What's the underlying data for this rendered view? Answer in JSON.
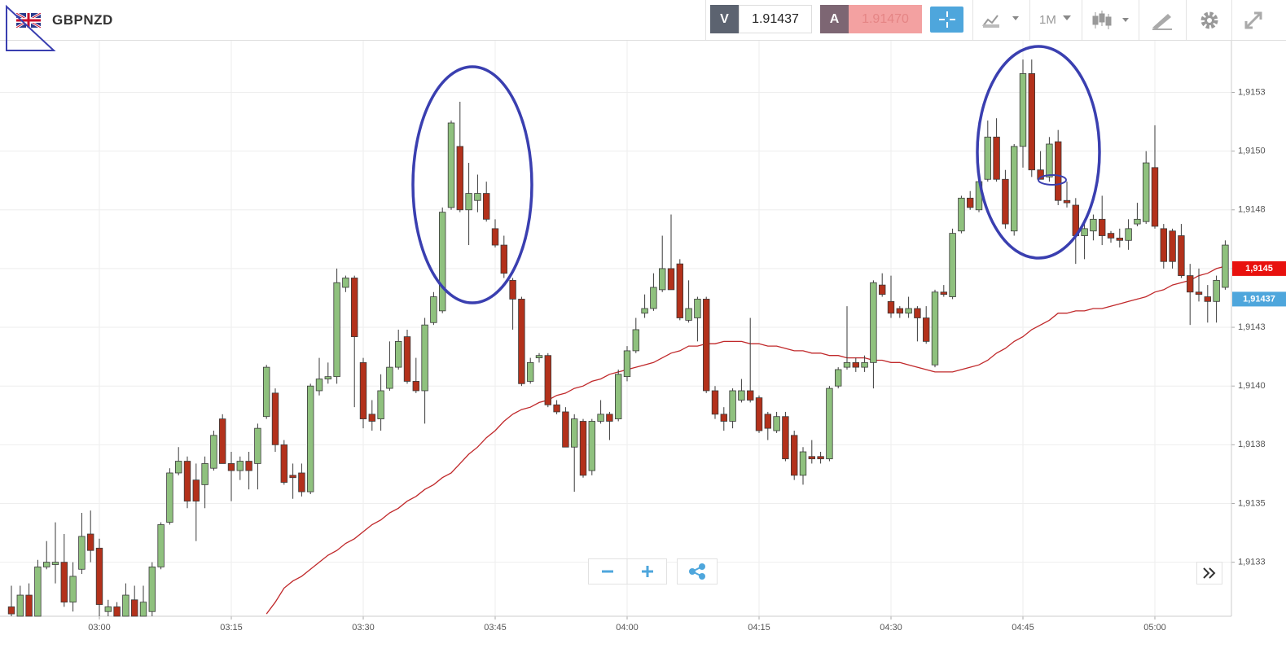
{
  "header": {
    "symbol": "GBPNZD",
    "sell_label": "V",
    "sell_price": "1.91437",
    "buy_label": "A",
    "buy_price": "1.91470",
    "timeframe": "1M"
  },
  "chart_data": {
    "type": "candlestick",
    "categories": [
      null,
      null,
      null,
      null,
      null,
      null,
      null,
      null,
      null,
      null,
      "03:00",
      null,
      null,
      null,
      null,
      null,
      null,
      null,
      null,
      null,
      null,
      null,
      null,
      null,
      null,
      "03:15",
      null,
      null,
      null,
      null,
      null,
      null,
      null,
      null,
      null,
      null,
      null,
      null,
      null,
      null,
      "03:30",
      null,
      null,
      null,
      null,
      null,
      null,
      null,
      null,
      null,
      null,
      null,
      null,
      null,
      null,
      "03:45",
      null,
      null,
      null,
      null,
      null,
      null,
      null,
      null,
      null,
      null,
      null,
      null,
      null,
      null,
      "04:00",
      null,
      null,
      null,
      null,
      null,
      null,
      null,
      null,
      null,
      null,
      null,
      null,
      null,
      null,
      "04:15",
      null,
      null,
      null,
      null,
      null,
      null,
      null,
      null,
      null,
      null,
      null,
      null,
      null,
      null,
      "04:30",
      null,
      null,
      null,
      null,
      null,
      null,
      null,
      null,
      null,
      null,
      null,
      null,
      null,
      null,
      "04:45",
      null,
      null,
      null,
      null,
      null,
      null,
      null,
      null,
      null,
      null,
      null,
      null,
      null,
      null,
      "05:00",
      null,
      null,
      null,
      null,
      null,
      null,
      null,
      null
    ],
    "open": [
      1.91306,
      1.91302,
      1.91311,
      1.91302,
      1.91323,
      1.91324,
      1.91325,
      1.91308,
      1.91322,
      1.91337,
      1.91331,
      1.91304,
      1.91306,
      1.91302,
      1.91309,
      1.91302,
      1.91304,
      1.91323,
      1.91342,
      1.91363,
      1.91368,
      1.9136,
      1.91358,
      1.91365,
      1.91386,
      1.91367,
      1.91364,
      1.91368,
      1.91367,
      1.91387,
      1.91397,
      1.91375,
      1.91362,
      1.91363,
      1.91355,
      1.91398,
      1.91403,
      1.91404,
      1.91442,
      1.91446,
      1.9141,
      1.91388,
      1.91386,
      1.91399,
      1.91408,
      1.91421,
      1.91402,
      1.91398,
      1.91427,
      1.91432,
      1.91476,
      1.91502,
      1.91475,
      1.91479,
      1.91482,
      1.91467,
      1.9146,
      1.91445,
      1.91437,
      1.91402,
      1.91412,
      1.91413,
      1.91392,
      1.91389,
      1.91374,
      1.91385,
      1.91364,
      1.91385,
      1.91388,
      1.91386,
      1.91404,
      1.91415,
      1.91431,
      1.91433,
      1.91441,
      1.9145,
      1.91452,
      1.91428,
      1.91429,
      1.91437,
      1.91398,
      1.91388,
      1.91385,
      1.91394,
      1.91398,
      1.91395,
      1.91388,
      1.91381,
      1.91387,
      1.91379,
      1.91362,
      1.9137,
      1.9137,
      1.91369,
      1.914,
      1.91408,
      1.9141,
      1.91408,
      1.9141,
      1.91443,
      1.91436,
      1.91433,
      1.91431,
      1.91433,
      1.91429,
      1.91409,
      1.9144,
      1.91438,
      1.91466,
      1.9148,
      1.91475,
      1.91488,
      1.91506,
      1.91488,
      1.91466,
      1.91502,
      1.91533,
      1.91492,
      1.91489,
      1.91504,
      1.91479,
      1.91477,
      1.91464,
      1.91466,
      1.91471,
      1.91465,
      1.91463,
      1.91462,
      1.91469,
      1.9147,
      1.91493,
      1.91467,
      1.91466,
      1.91464,
      1.91447,
      1.9144,
      1.91438,
      1.91436,
      1.91442
    ],
    "high": [
      1.91315,
      1.91315,
      1.91316,
      1.91326,
      1.91334,
      1.91342,
      1.91337,
      1.91325,
      1.91346,
      1.91347,
      1.91335,
      1.91309,
      1.91308,
      1.91316,
      1.91315,
      1.91315,
      1.91325,
      1.91342,
      1.91365,
      1.91374,
      1.9137,
      1.91367,
      1.9137,
      1.91381,
      1.91388,
      1.91372,
      1.9137,
      1.91372,
      1.91384,
      1.91409,
      1.91399,
      1.91377,
      1.91367,
      1.91367,
      1.91401,
      1.91412,
      1.9141,
      1.9145,
      1.91447,
      1.91447,
      1.91412,
      1.91394,
      1.91405,
      1.91419,
      1.91424,
      1.91424,
      1.91412,
      1.91429,
      1.9144,
      1.91476,
      1.91513,
      1.91521,
      1.91495,
      1.9149,
      1.91487,
      1.91471,
      1.91464,
      1.91446,
      1.91438,
      1.91412,
      1.91414,
      1.91414,
      1.91394,
      1.91391,
      1.91388,
      1.91386,
      1.91386,
      1.91394,
      1.91389,
      1.91407,
      1.91417,
      1.91429,
      1.91439,
      1.91448,
      1.91464,
      1.91473,
      1.91454,
      1.91445,
      1.91438,
      1.91438,
      1.914,
      1.91391,
      1.91399,
      1.91403,
      1.91429,
      1.91396,
      1.91389,
      1.91389,
      1.91389,
      1.91381,
      1.91374,
      1.91377,
      1.91372,
      1.914,
      1.91408,
      1.91434,
      1.91412,
      1.91413,
      1.91445,
      1.91448,
      1.91447,
      1.91434,
      1.91438,
      1.91434,
      1.91434,
      1.91441,
      1.91443,
      1.91467,
      1.91481,
      1.91483,
      1.91488,
      1.91513,
      1.91514,
      1.91492,
      1.91503,
      1.91539,
      1.91539,
      1.915,
      1.91506,
      1.91509,
      1.91487,
      1.9148,
      1.91469,
      1.91473,
      1.91481,
      1.91466,
      1.91467,
      1.91471,
      1.91478,
      1.915,
      1.91511,
      1.91469,
      1.91467,
      1.91469,
      1.91452,
      1.9145,
      1.91443,
      1.91447,
      1.91462
    ],
    "low": [
      1.91302,
      1.91302,
      1.91302,
      1.91302,
      1.91322,
      1.91316,
      1.91306,
      1.91304,
      1.9132,
      1.91325,
      1.91302,
      1.91302,
      1.91302,
      1.91302,
      1.91302,
      1.91302,
      1.91302,
      1.91322,
      1.91341,
      1.91362,
      1.91348,
      1.91334,
      1.91348,
      1.91364,
      1.91367,
      1.91351,
      1.9136,
      1.91356,
      1.91356,
      1.91386,
      1.91372,
      1.91358,
      1.91352,
      1.91353,
      1.91354,
      1.91396,
      1.91401,
      1.91401,
      1.9144,
      1.91391,
      1.91382,
      1.91381,
      1.91381,
      1.91398,
      1.91407,
      1.91401,
      1.91397,
      1.91384,
      1.91426,
      1.91431,
      1.91475,
      1.91474,
      1.9146,
      1.91474,
      1.9147,
      1.91459,
      1.91446,
      1.91424,
      1.914,
      1.91401,
      1.9141,
      1.91391,
      1.91388,
      1.91374,
      1.91355,
      1.91361,
      1.91362,
      1.91384,
      1.91377,
      1.91385,
      1.91402,
      1.91414,
      1.91429,
      1.91432,
      1.9144,
      1.91441,
      1.91428,
      1.91427,
      1.91419,
      1.91397,
      1.91386,
      1.91381,
      1.91382,
      1.91393,
      1.91393,
      1.9138,
      1.91377,
      1.9138,
      1.91368,
      1.9136,
      1.91358,
      1.91367,
      1.91367,
      1.91368,
      1.91399,
      1.91407,
      1.91406,
      1.91406,
      1.91399,
      1.91438,
      1.91429,
      1.91429,
      1.91429,
      1.91419,
      1.91418,
      1.91408,
      1.91438,
      1.91437,
      1.91465,
      1.91475,
      1.91474,
      1.91487,
      1.91487,
      1.91467,
      1.91464,
      1.91493,
      1.91489,
      1.91488,
      1.91487,
      1.91477,
      1.91476,
      1.91452,
      1.91454,
      1.91462,
      1.9146,
      1.91461,
      1.91459,
      1.91458,
      1.91468,
      1.91469,
      1.91467,
      1.9145,
      1.9145,
      1.91446,
      1.91426,
      1.91436,
      1.91427,
      1.91427,
      1.91441
    ],
    "close": [
      1.91303,
      1.91311,
      1.91302,
      1.91323,
      1.91325,
      1.91325,
      1.91308,
      1.91319,
      1.91336,
      1.9133,
      1.91307,
      1.91306,
      1.91302,
      1.91311,
      1.91302,
      1.91308,
      1.91323,
      1.91341,
      1.91363,
      1.91368,
      1.91351,
      1.91351,
      1.91367,
      1.91379,
      1.91367,
      1.91364,
      1.91368,
      1.91364,
      1.91382,
      1.91408,
      1.91375,
      1.91359,
      1.91361,
      1.91355,
      1.914,
      1.91403,
      1.91404,
      1.91444,
      1.91446,
      1.91421,
      1.91386,
      1.91385,
      1.91398,
      1.91408,
      1.91419,
      1.91402,
      1.91398,
      1.91426,
      1.91438,
      1.91474,
      1.91512,
      1.91475,
      1.91482,
      1.91482,
      1.91471,
      1.9146,
      1.91448,
      1.91437,
      1.91401,
      1.9141,
      1.91413,
      1.91392,
      1.91389,
      1.91374,
      1.91386,
      1.91362,
      1.91385,
      1.91388,
      1.91385,
      1.91405,
      1.91415,
      1.91424,
      1.91433,
      1.91442,
      1.9145,
      1.91441,
      1.91429,
      1.91433,
      1.91437,
      1.91398,
      1.91388,
      1.91385,
      1.91398,
      1.91398,
      1.91394,
      1.91381,
      1.91382,
      1.91387,
      1.91369,
      1.91362,
      1.91372,
      1.91369,
      1.91369,
      1.91399,
      1.91407,
      1.9141,
      1.91408,
      1.9141,
      1.91444,
      1.91439,
      1.91431,
      1.91431,
      1.91433,
      1.91429,
      1.91419,
      1.9144,
      1.91439,
      1.91465,
      1.9148,
      1.91476,
      1.91487,
      1.91506,
      1.91488,
      1.91469,
      1.91502,
      1.91533,
      1.91492,
      1.91488,
      1.91503,
      1.91479,
      1.91478,
      1.91464,
      1.91467,
      1.91471,
      1.91464,
      1.91463,
      1.91462,
      1.91467,
      1.91471,
      1.91495,
      1.91468,
      1.91453,
      1.91453,
      1.91447,
      1.9144,
      1.91439,
      1.91436,
      1.91445,
      1.9146
    ],
    "up_color": "#8fc17e",
    "down_color": "#b3311b",
    "moving_average": {
      "color": "#c0282a",
      "values": [
        null,
        null,
        null,
        null,
        null,
        null,
        null,
        null,
        null,
        null,
        null,
        null,
        null,
        null,
        null,
        null,
        null,
        null,
        null,
        null,
        null,
        null,
        null,
        null,
        null,
        null,
        null,
        null,
        null,
        1.91303,
        1.91308,
        1.91314,
        1.91317,
        1.91319,
        1.91322,
        1.91325,
        1.91328,
        1.9133,
        1.91333,
        1.91335,
        1.91338,
        1.91341,
        1.91343,
        1.91346,
        1.91348,
        1.91351,
        1.91353,
        1.91356,
        1.91358,
        1.91361,
        1.91363,
        1.91367,
        1.91371,
        1.91374,
        1.91378,
        1.91381,
        1.91385,
        1.91388,
        1.9139,
        1.91391,
        1.91393,
        1.91394,
        1.91396,
        1.91397,
        1.91399,
        1.914,
        1.91402,
        1.91403,
        1.91405,
        1.91406,
        1.91407,
        1.91408,
        1.91409,
        1.9141,
        1.91412,
        1.91414,
        1.91415,
        1.91417,
        1.91417,
        1.91418,
        1.91418,
        1.91419,
        1.91419,
        1.91419,
        1.91418,
        1.91418,
        1.91417,
        1.91417,
        1.91416,
        1.91415,
        1.91415,
        1.91414,
        1.91414,
        1.91413,
        1.91413,
        1.91412,
        1.91412,
        1.91412,
        1.91411,
        1.91411,
        1.9141,
        1.9141,
        1.91409,
        1.91408,
        1.91407,
        1.91406,
        1.91406,
        1.91406,
        1.91407,
        1.91408,
        1.91409,
        1.91411,
        1.91414,
        1.91416,
        1.91419,
        1.91421,
        1.91424,
        1.91426,
        1.91428,
        1.91431,
        1.91431,
        1.91432,
        1.91432,
        1.91433,
        1.91433,
        1.91434,
        1.91435,
        1.91436,
        1.91437,
        1.91438,
        1.9144,
        1.91441,
        1.91443,
        1.91444,
        1.91445,
        1.91447,
        1.91448,
        1.9145,
        1.91451
      ]
    },
    "price_tags": [
      {
        "value": 1.9145,
        "label": "1,9145",
        "color": "#e8110e"
      },
      {
        "value": 1.91437,
        "label": "1,91437",
        "color": "#4ea6dc"
      }
    ],
    "ylim": [
      1.91302,
      1.91547
    ],
    "yticks": [
      {
        "value": 1.91525,
        "label": "1,9153"
      },
      {
        "value": 1.915,
        "label": "1,9150"
      },
      {
        "value": 1.91475,
        "label": "1,9148"
      },
      {
        "value": 1.9145,
        "label": "1,9145"
      },
      {
        "value": 1.91425,
        "label": "1,9143"
      },
      {
        "value": 1.914,
        "label": "1,9140"
      },
      {
        "value": 1.91375,
        "label": "1,9138"
      },
      {
        "value": 1.9135,
        "label": "1,9135"
      },
      {
        "value": 1.91325,
        "label": "1,9133"
      }
    ],
    "grid": true
  }
}
